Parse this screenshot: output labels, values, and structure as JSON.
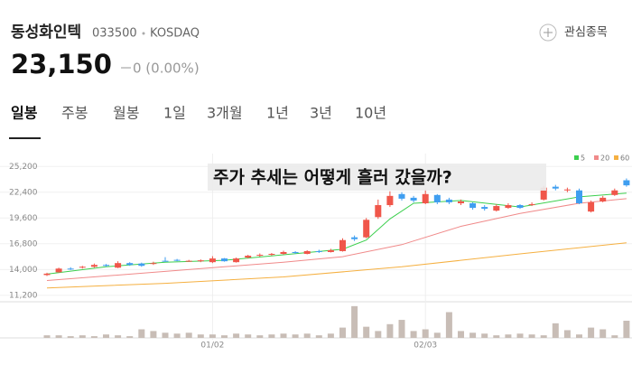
{
  "header": {
    "name": "동성화인텍",
    "code": "033500",
    "market": "KOSDAQ",
    "watch": "관심종목",
    "price": "23,150",
    "change": "－0 (0.00%)"
  },
  "tabs": [
    "일봉",
    "주봉",
    "월봉",
    "1일",
    "3개월",
    "1년",
    "3년",
    "10년"
  ],
  "chart_data": {
    "type": "candlestick",
    "annotation": "주가 추세는 어떻게 흘러 갔을까?",
    "categories": [
      null,
      null,
      null,
      null,
      null,
      null,
      null,
      null,
      null,
      null,
      null,
      null,
      null,
      null,
      "01/02",
      null,
      null,
      null,
      null,
      null,
      null,
      null,
      null,
      null,
      null,
      null,
      null,
      null,
      null,
      null,
      null,
      null,
      "02/03",
      null,
      null,
      null,
      null,
      null,
      null,
      null,
      null,
      null,
      null,
      null,
      null,
      null,
      null,
      null,
      null,
      null
    ],
    "open": [
      13400,
      13700,
      14100,
      14200,
      14300,
      14500,
      14200,
      14700,
      14650,
      14600,
      14950,
      15050,
      14900,
      14900,
      14800,
      15200,
      14800,
      15300,
      15500,
      15600,
      15700,
      15900,
      15700,
      16000,
      15900,
      16000,
      17500,
      17500,
      19700,
      21000,
      22200,
      21800,
      21200,
      22100,
      21600,
      21200,
      21200,
      20800,
      20400,
      20700,
      21000,
      21000,
      21600,
      23000,
      22600,
      22600,
      20300,
      21400,
      22100,
      23700
    ],
    "high": [
      13650,
      14200,
      14250,
      14400,
      14650,
      14600,
      14900,
      14800,
      14750,
      14850,
      15350,
      15150,
      15050,
      15100,
      15450,
      15250,
      15300,
      15600,
      15750,
      15800,
      16050,
      16000,
      16100,
      16150,
      16250,
      17400,
      17700,
      19600,
      21600,
      22500,
      22400,
      22000,
      22800,
      22200,
      21800,
      21600,
      21300,
      21000,
      21100,
      21200,
      21100,
      21300,
      23100,
      23200,
      22900,
      22800,
      21500,
      22000,
      22800,
      23900
    ],
    "low": [
      13300,
      13650,
      13950,
      14100,
      14200,
      14300,
      14150,
      14400,
      14300,
      14500,
      14850,
      14900,
      14850,
      14800,
      14700,
      14850,
      14750,
      15200,
      15400,
      15500,
      15600,
      15700,
      15650,
      15800,
      15850,
      15950,
      17100,
      17400,
      19500,
      20800,
      21500,
      21300,
      21100,
      21100,
      21100,
      21000,
      20500,
      20400,
      20300,
      20600,
      20600,
      20900,
      21500,
      22600,
      22400,
      21100,
      20200,
      21300,
      22000,
      23000
    ],
    "close": [
      13550,
      14100,
      14050,
      14300,
      14500,
      14400,
      14700,
      14500,
      14400,
      14700,
      14900,
      15000,
      14950,
      15000,
      15200,
      14900,
      15200,
      15500,
      15600,
      15700,
      15900,
      15800,
      16000,
      15900,
      16100,
      17200,
      17300,
      19400,
      21000,
      22000,
      21700,
      21500,
      22200,
      21300,
      21300,
      21400,
      20700,
      20600,
      20900,
      21000,
      20700,
      21100,
      22900,
      22800,
      22700,
      21200,
      21300,
      21800,
      22600,
      23150
    ],
    "up_color": "#f0564a",
    "down_color": "#3f9ef0",
    "series": [
      {
        "name": "5",
        "color": "#3ccf4e",
        "x": [
          0,
          5,
          10,
          15,
          20,
          25,
          27,
          29,
          31,
          35,
          40,
          45,
          49
        ],
        "values": [
          13500,
          14300,
          14800,
          15000,
          15600,
          16200,
          17200,
          19500,
          21200,
          21500,
          20800,
          21900,
          22300
        ]
      },
      {
        "name": "20",
        "color": "#f08a8a",
        "x": [
          0,
          10,
          20,
          25,
          30,
          35,
          40,
          45,
          49
        ],
        "values": [
          12800,
          13800,
          14800,
          15400,
          16700,
          18700,
          20100,
          21200,
          21700
        ]
      },
      {
        "name": "60",
        "color": "#f5b041",
        "x": [
          0,
          10,
          20,
          30,
          40,
          49
        ],
        "values": [
          12000,
          12500,
          13200,
          14300,
          15700,
          16900
        ]
      }
    ],
    "volume": [
      3,
      3,
      2,
      3,
      2,
      4,
      3,
      2,
      10,
      8,
      6,
      5,
      6,
      4,
      4,
      3,
      5,
      4,
      3,
      4,
      5,
      4,
      5,
      3,
      5,
      12,
      37,
      13,
      8,
      16,
      21,
      8,
      10,
      6,
      30,
      8,
      6,
      5,
      3,
      4,
      5,
      4,
      3,
      17,
      9,
      4,
      12,
      10,
      3,
      20
    ],
    "volume_color": "#c8bdb6",
    "volume_ylim": [
      0,
      40
    ],
    "ylim": [
      10300,
      26600
    ],
    "yticks": [
      {
        "value": 11200,
        "label": "11,200"
      },
      {
        "value": 14000,
        "label": "14,000"
      },
      {
        "value": 16800,
        "label": "16,800"
      },
      {
        "value": 19600,
        "label": "19,600"
      },
      {
        "value": 22400,
        "label": "22,400"
      },
      {
        "value": 25200,
        "label": "25,200"
      }
    ],
    "grid": true
  }
}
